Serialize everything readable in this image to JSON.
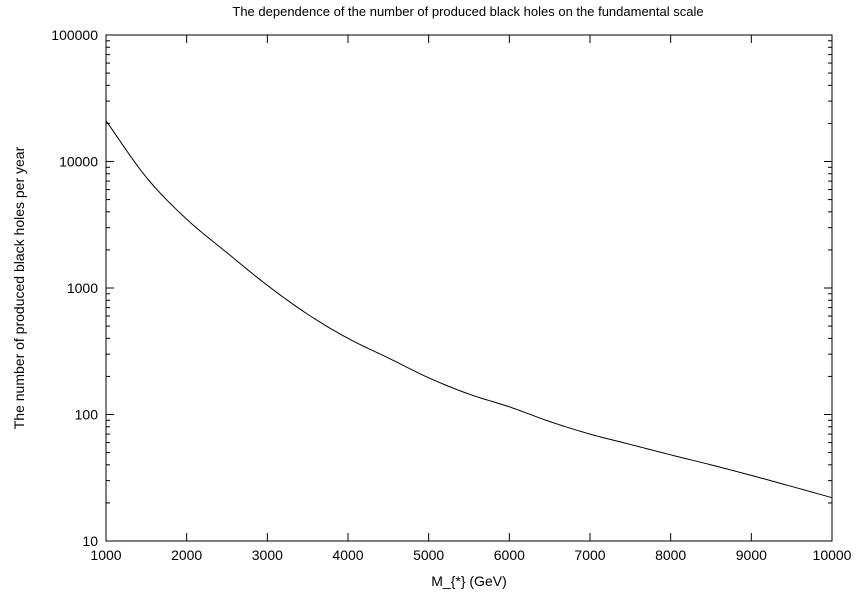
{
  "chart_data": {
    "type": "line",
    "title": "The dependence of the number of produced black holes on the fundamental scale",
    "xlabel": "M_{*} (GeV)",
    "ylabel": "The number of produced black holes per year",
    "xlim": [
      1000,
      10000
    ],
    "ylim": [
      10,
      100000
    ],
    "yscale": "log",
    "grid": false,
    "xticks": [
      1000,
      2000,
      3000,
      4000,
      5000,
      6000,
      7000,
      8000,
      9000,
      10000
    ],
    "yticks": [
      10,
      100,
      1000,
      10000,
      100000
    ],
    "x_tick_labels": [
      "1000",
      "2000",
      "3000",
      "4000",
      "5000",
      "6000",
      "7000",
      "8000",
      "9000",
      "10000"
    ],
    "y_tick_labels": [
      "10",
      "100",
      "1000",
      "10000",
      "100000"
    ],
    "series": [
      {
        "color": "#000000",
        "x": [
          1000,
          1500,
          2000,
          2500,
          3000,
          3500,
          4000,
          4500,
          5000,
          5500,
          6000,
          6500,
          7000,
          7500,
          8000,
          8500,
          9000,
          9500,
          10000
        ],
        "y": [
          21000,
          7500,
          3500,
          1900,
          1050,
          620,
          400,
          280,
          195,
          145,
          115,
          88,
          70,
          58,
          48,
          40,
          33,
          27,
          22
        ]
      }
    ]
  }
}
